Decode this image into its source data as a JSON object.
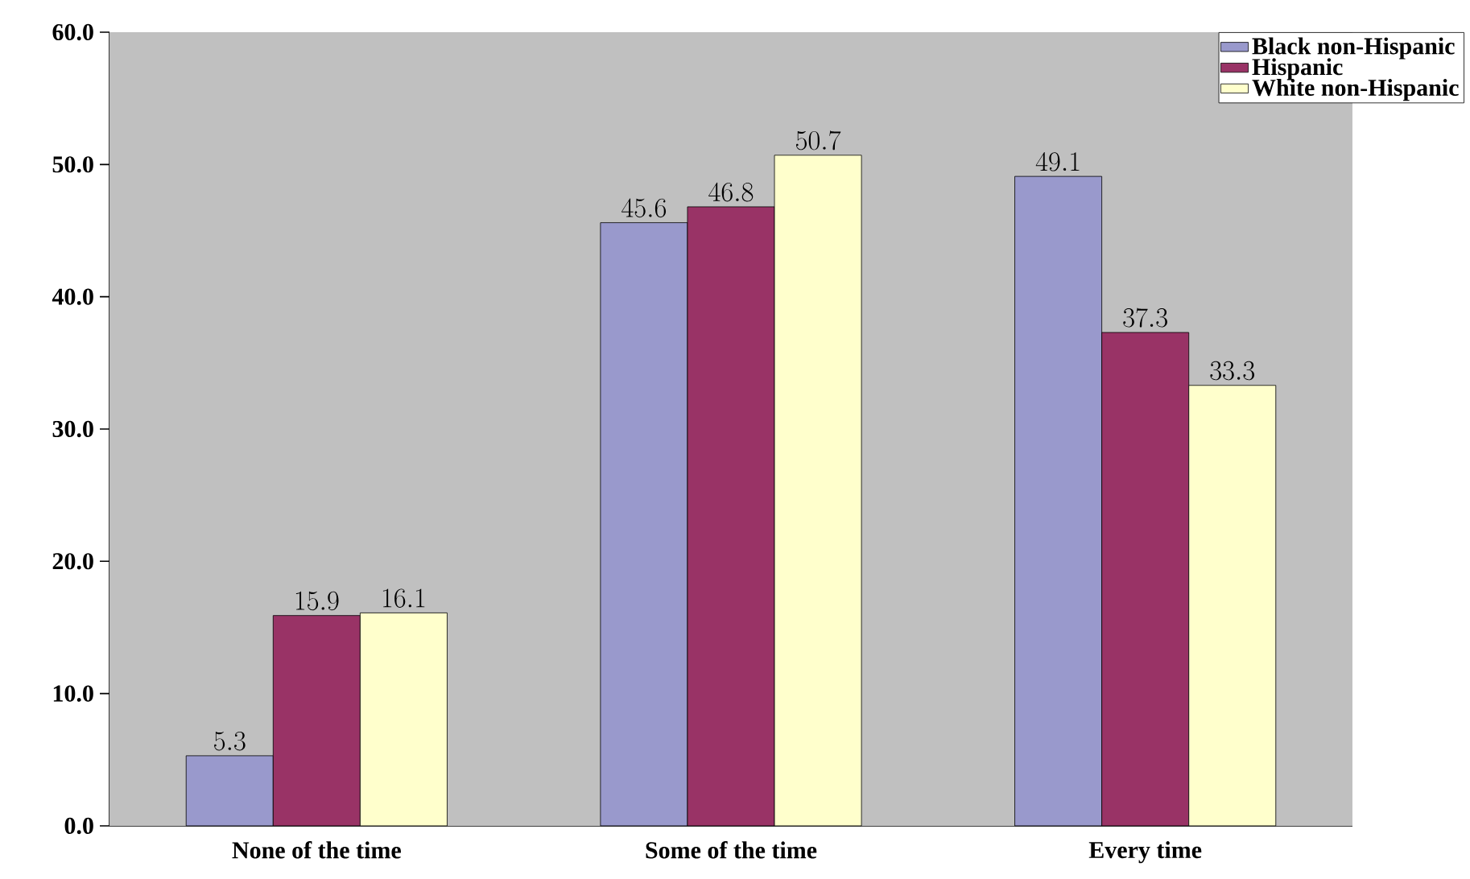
{
  "chart_data": {
    "type": "bar",
    "categories": [
      "None of the time",
      "Some of the time",
      "Every time"
    ],
    "series": [
      {
        "name": "Black non-Hispanic",
        "color": "#9999cc",
        "values": [
          5.3,
          45.6,
          49.1
        ]
      },
      {
        "name": "Hispanic",
        "color": "#993366",
        "values": [
          15.9,
          46.8,
          37.3
        ]
      },
      {
        "name": "White non-Hispanic",
        "color": "#ffffcc",
        "values": [
          16.1,
          50.7,
          33.3
        ]
      }
    ],
    "ylim": [
      0,
      60
    ],
    "yticks": [
      {
        "value": 0,
        "label": "0.0"
      },
      {
        "value": 10,
        "label": "10.0"
      },
      {
        "value": 20,
        "label": "20.0"
      },
      {
        "value": 30,
        "label": "30.0"
      },
      {
        "value": 40,
        "label": "40.0"
      },
      {
        "value": 50,
        "label": "50.0"
      },
      {
        "value": 60,
        "label": "60.0"
      }
    ],
    "data_labels": true,
    "grid": false,
    "legend": "top right"
  }
}
